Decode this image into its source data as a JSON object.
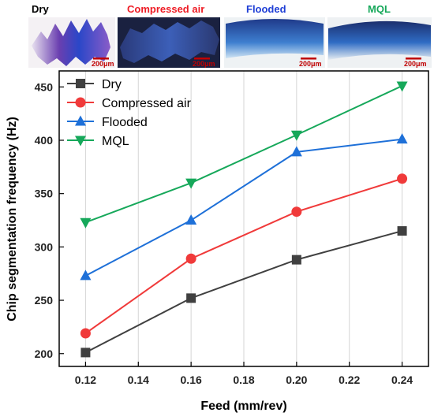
{
  "panels": [
    {
      "label": "Dry",
      "label_color": "#000000",
      "scale": "200μm",
      "style": "dry"
    },
    {
      "label": "Compressed air",
      "label_color": "#ee1c25",
      "scale": "200μm",
      "style": "air"
    },
    {
      "label": "Flooded",
      "label_color": "#1f3fd6",
      "scale": "200μm",
      "style": "flood"
    },
    {
      "label": "MQL",
      "label_color": "#16a85a",
      "scale": "200μm",
      "style": "mql"
    }
  ],
  "chart_data": {
    "type": "line",
    "title": "",
    "xlabel": "Feed (mm/rev)",
    "ylabel": "Chip segmentation frequency (Hz)",
    "x": [
      0.12,
      0.16,
      0.2,
      0.24
    ],
    "xlim": [
      0.11,
      0.25
    ],
    "ylim": [
      188,
      465
    ],
    "xticks": [
      "0.12",
      "0.14",
      "0.16",
      "0.18",
      "0.20",
      "0.22",
      "0.24"
    ],
    "yticks": [
      "200",
      "250",
      "300",
      "350",
      "400",
      "450"
    ],
    "grid": "vertical",
    "legend": "top-left",
    "series": [
      {
        "name": "Dry",
        "color": "#404040",
        "marker": "square",
        "values": [
          201,
          252,
          288,
          315
        ]
      },
      {
        "name": "Compressed air",
        "color": "#f03a3a",
        "marker": "circle",
        "values": [
          219,
          289,
          333,
          364
        ]
      },
      {
        "name": "Flooded",
        "color": "#1e70d8",
        "marker": "triangle-up",
        "values": [
          273,
          325,
          389,
          401
        ]
      },
      {
        "name": "MQL",
        "color": "#16a85a",
        "marker": "triangle-down",
        "values": [
          323,
          360,
          405,
          451
        ]
      }
    ]
  }
}
